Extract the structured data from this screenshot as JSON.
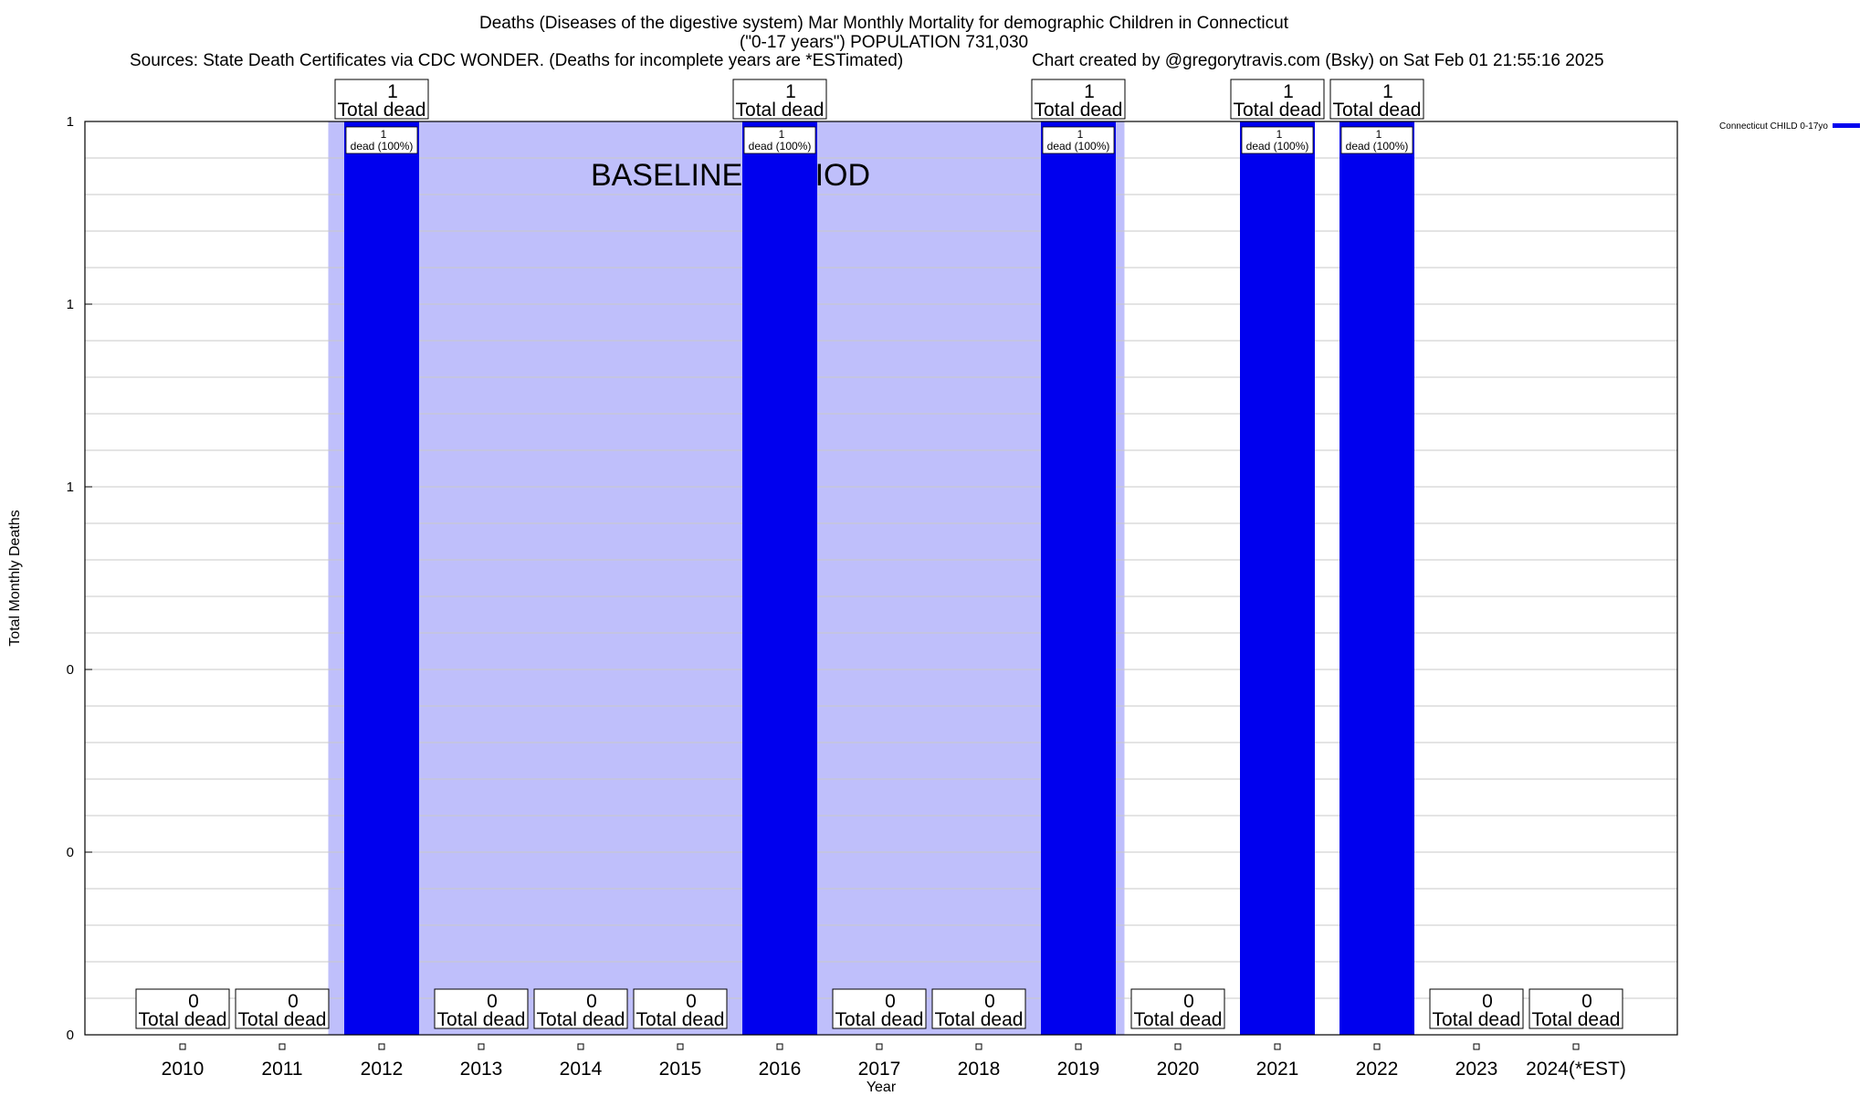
{
  "header": {
    "title_line1": "Deaths (Diseases of the digestive system) Mar Monthly Mortality for demographic Children in Connecticut",
    "title_line2": "(\"0-17 years\") POPULATION 731,030",
    "sources": "Sources: State Death Certificates via CDC WONDER. (Deaths for incomplete years are *ESTimated)",
    "credit": "Chart created by @gregorytravis.com (Bsky) on Sat Feb 01 21:55:16 2025"
  },
  "chart_data": {
    "type": "bar",
    "xlabel": "Year",
    "ylabel": "Total Monthly Deaths",
    "categories": [
      "2010",
      "2011",
      "2012",
      "2013",
      "2014",
      "2015",
      "2016",
      "2017",
      "2018",
      "2019",
      "2020",
      "2021",
      "2022",
      "2023",
      "2024(*EST)"
    ],
    "series": [
      {
        "name": "Connecticut CHILD 0-17yo",
        "values": [
          0,
          0,
          1,
          0,
          0,
          0,
          1,
          0,
          0,
          1,
          0,
          1,
          1,
          0,
          0
        ],
        "color": "#0000ee"
      }
    ],
    "ylim": [
      0,
      1
    ],
    "ytick_labels": [
      "0",
      "0",
      "0",
      "1",
      "1",
      "1"
    ],
    "total_label_text": "Total dead",
    "bar_inner_label_text": "dead (100%)",
    "baseline": {
      "label": "BASELINE PERIOD",
      "start": "2012",
      "end": "2019",
      "color": "#bfbffb"
    },
    "legend_position": "top-right",
    "grid": true
  }
}
